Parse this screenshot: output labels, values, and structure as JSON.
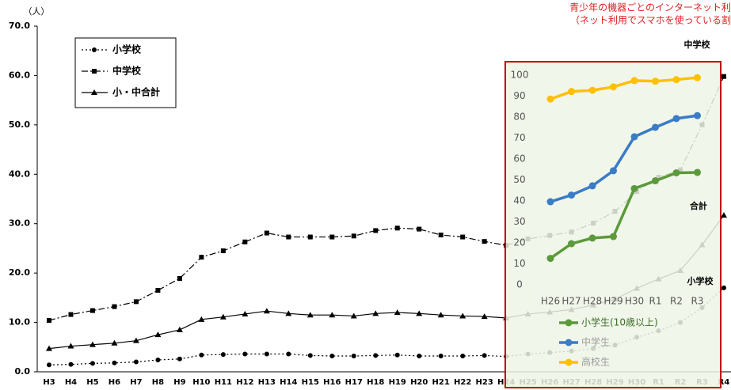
{
  "chart_data": [
    {
      "type": "line",
      "y_label": "（人）",
      "categories": [
        "H3",
        "H4",
        "H5",
        "H6",
        "H7",
        "H8",
        "H9",
        "H10",
        "H11",
        "H12",
        "H13",
        "H14",
        "H15",
        "H16",
        "H17",
        "H18",
        "H19",
        "H20",
        "H21",
        "H22",
        "H23",
        "H24",
        "H25",
        "H26",
        "H27",
        "H28",
        "H29",
        "H30",
        "R1",
        "R2",
        "R3",
        "R4"
      ],
      "ylim": [
        0,
        70
      ],
      "yticks": [
        {
          "value": 0,
          "label": "0.0"
        },
        {
          "value": 10,
          "label": "10.0"
        },
        {
          "value": 20,
          "label": "20.0"
        },
        {
          "value": 30,
          "label": "30.0"
        },
        {
          "value": 40,
          "label": "40.0"
        },
        {
          "value": 50,
          "label": "50.0"
        },
        {
          "value": 60,
          "label": "60.0"
        },
        {
          "value": 70,
          "label": "70.0"
        }
      ],
      "legend": "upper left",
      "series": [
        {
          "name": "小学校",
          "color": "#000000",
          "marker": "circle",
          "line_style": "dotted",
          "values": [
            1.4,
            1.5,
            1.7,
            1.8,
            2.0,
            2.4,
            2.6,
            3.4,
            3.5,
            3.6,
            3.6,
            3.6,
            3.3,
            3.2,
            3.2,
            3.3,
            3.4,
            3.2,
            3.2,
            3.2,
            3.3,
            3.1,
            3.6,
            3.9,
            4.2,
            4.7,
            5.4,
            7.0,
            8.3,
            10.0,
            13.0,
            17.0
          ]
        },
        {
          "name": "中学校",
          "color": "#000000",
          "marker": "square",
          "line_style": "dashdot",
          "values": [
            10.4,
            11.6,
            12.4,
            13.2,
            14.2,
            16.5,
            18.9,
            23.2,
            24.5,
            26.3,
            28.1,
            27.3,
            27.3,
            27.3,
            27.5,
            28.6,
            29.1,
            28.9,
            27.7,
            27.3,
            26.4,
            25.6,
            26.9,
            27.6,
            28.3,
            30.1,
            32.5,
            36.5,
            39.4,
            40.9,
            50.0,
            59.8
          ]
        },
        {
          "name": "小・中合計",
          "color": "#000000",
          "marker": "triangle",
          "line_style": "solid",
          "values": [
            4.7,
            5.2,
            5.5,
            5.8,
            6.3,
            7.5,
            8.5,
            10.6,
            11.1,
            11.7,
            12.3,
            11.8,
            11.5,
            11.5,
            11.3,
            11.8,
            12.0,
            11.8,
            11.5,
            11.3,
            11.2,
            10.9,
            11.7,
            12.1,
            12.6,
            13.5,
            14.7,
            16.9,
            18.8,
            20.5,
            25.7,
            31.7
          ]
        }
      ],
      "annotations": [
        "中学校",
        "合計",
        "小学校"
      ]
    },
    {
      "type": "line",
      "title": "青少年の機器ごとのインターネット利",
      "subtitle": "（ネット利用でスマホを使っている割",
      "categories": [
        "H26",
        "H27",
        "H28",
        "H29",
        "H30",
        "R1",
        "R2",
        "R3"
      ],
      "ylim": [
        0,
        100
      ],
      "yticks": [
        0,
        10,
        20,
        30,
        40,
        50,
        60,
        70,
        80,
        90,
        100
      ],
      "legend": "lower center",
      "background": "#eef4e6",
      "border_color": "#c00000",
      "series": [
        {
          "name": "小学生(10歳以上)",
          "color": "#5b9a3a",
          "values": [
            12.6,
            19.6,
            22.3,
            23.0,
            45.9,
            49.6,
            53.4,
            53.6
          ]
        },
        {
          "name": "中学生",
          "color": "#3a7cc6",
          "values": [
            39.6,
            42.8,
            47.2,
            54.4,
            70.6,
            75.1,
            79.3,
            80.7
          ]
        },
        {
          "name": "高校生",
          "color": "#ffc000",
          "values": [
            88.6,
            92.2,
            92.8,
            94.4,
            97.4,
            97.1,
            97.9,
            98.8
          ]
        }
      ]
    }
  ]
}
